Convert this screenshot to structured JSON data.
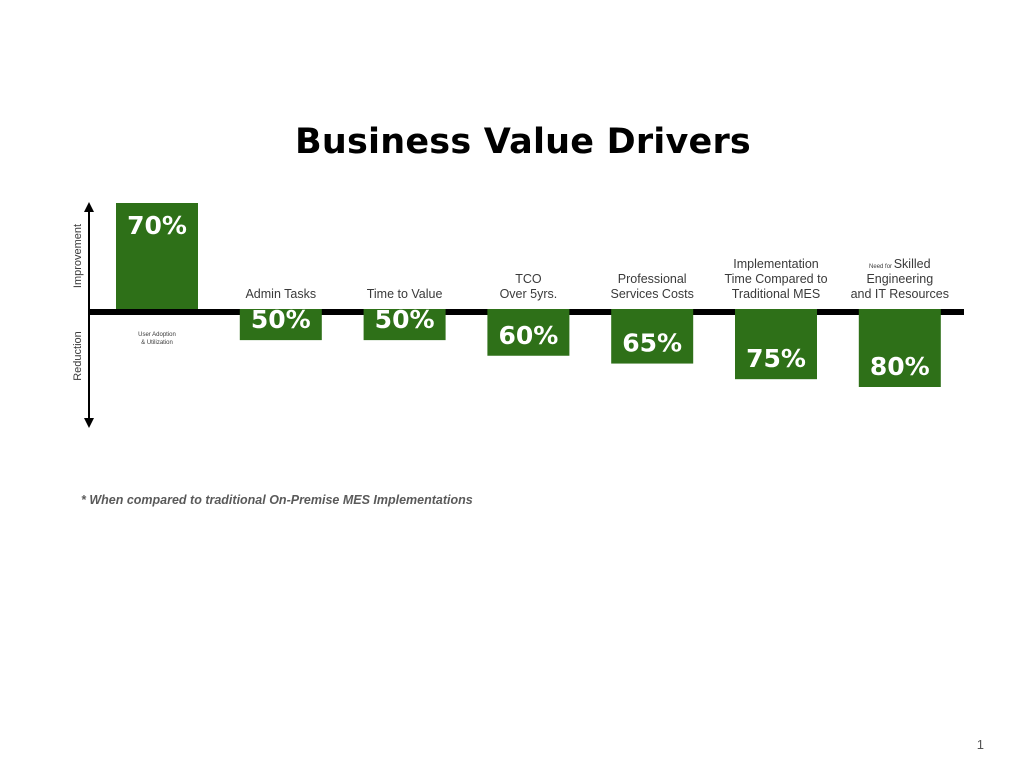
{
  "slide": {
    "footnote": "* When compared to traditional On-Premise MES Implementations",
    "page_number": "1"
  },
  "chart_data": {
    "type": "bar",
    "title": "Business Value Drivers",
    "axis_labels": {
      "up": "Improvement",
      "down": "Reduction"
    },
    "colors": {
      "bar": "#2e7018",
      "baseline": "#000000"
    },
    "categories": [
      {
        "lines": [
          {
            "small": "User Adoption"
          },
          {
            "small": "& Utilization"
          }
        ]
      },
      {
        "lines": [
          {
            "text": "Admin Tasks"
          }
        ]
      },
      {
        "lines": [
          {
            "text": "Time to Value"
          }
        ]
      },
      {
        "lines": [
          {
            "text": "TCO"
          },
          {
            "text": "Over 5yrs."
          }
        ]
      },
      {
        "lines": [
          {
            "text": "Professional"
          },
          {
            "text": "Services Costs"
          }
        ]
      },
      {
        "lines": [
          {
            "text": "Implementation"
          },
          {
            "text": "Time Compared to"
          },
          {
            "text": "Traditional MES"
          }
        ]
      },
      {
        "lines": [
          {
            "small": "Need for",
            "text": "Skilled"
          },
          {
            "text": "Engineering"
          },
          {
            "text": "and IT Resources"
          }
        ]
      }
    ],
    "series": [
      {
        "values": [
          70,
          -50,
          -50,
          -60,
          -65,
          -75,
          -80
        ],
        "value_labels": [
          "70%",
          "50%",
          "50%",
          "60%",
          "65%",
          "75%",
          "80%"
        ]
      }
    ],
    "grid": false,
    "legend": "none"
  }
}
